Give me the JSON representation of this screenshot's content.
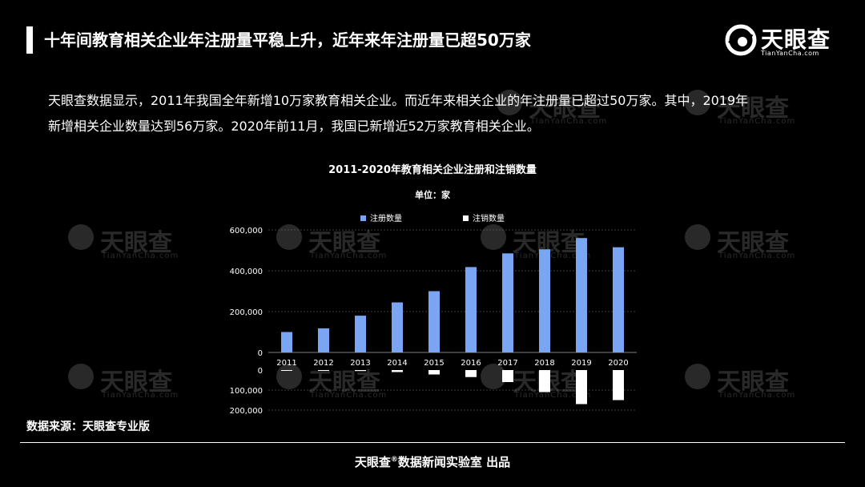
{
  "header": {
    "title": "十年间教育相关企业年注册量平稳上升，近年来年注册量已超50万家"
  },
  "brand": {
    "logo_text": "天眼查",
    "logo_sub": "TianYanCha.com"
  },
  "intro": {
    "line1": "天眼查数据显示，2011年我国全年新增10万家教育相关企业。而近年来相关企业的年注册量已超过50万家。其中，2019年",
    "line2": "新增相关企业数量达到56万家。2020年前11月，我国已新增近52万家教育相关企业。"
  },
  "source": "数据来源：天眼查专业版",
  "footer": {
    "prefix": "天眼查",
    "reg": "®",
    "suffix": "数据新闻实验室 出品"
  },
  "watermark": {
    "text": "天眼查",
    "sub": "TianYanCha.com"
  },
  "colors": {
    "registered": "#7aa5f2",
    "canceled": "#ffffff",
    "background": "#000000"
  },
  "chart_data": {
    "type": "bar",
    "title": "2011-2020年教育相关企业注册和注销数量",
    "subtitle": "单位：家",
    "categories": [
      "2011",
      "2012",
      "2013",
      "2014",
      "2015",
      "2016",
      "2017",
      "2018",
      "2019",
      "2020"
    ],
    "series": [
      {
        "name": "注册数量",
        "values": [
          100000,
          118000,
          180000,
          245000,
          300000,
          418000,
          485000,
          505000,
          560000,
          515000
        ]
      },
      {
        "name": "注销数量",
        "values": [
          2000,
          3000,
          5000,
          10000,
          22000,
          35000,
          60000,
          110000,
          170000,
          150000
        ]
      }
    ],
    "top_axis": {
      "ylim": [
        0,
        600000
      ],
      "ticks": [
        0,
        200000,
        400000,
        600000
      ],
      "tick_labels": [
        "0",
        "200,000",
        "400,000",
        "600,000"
      ]
    },
    "bottom_axis": {
      "ylim": [
        0,
        200000
      ],
      "ticks": [
        0,
        100000,
        200000
      ],
      "tick_labels": [
        "0",
        "100,000",
        "200,000"
      ],
      "direction": "down"
    },
    "grid": true,
    "legend": "top-center"
  }
}
